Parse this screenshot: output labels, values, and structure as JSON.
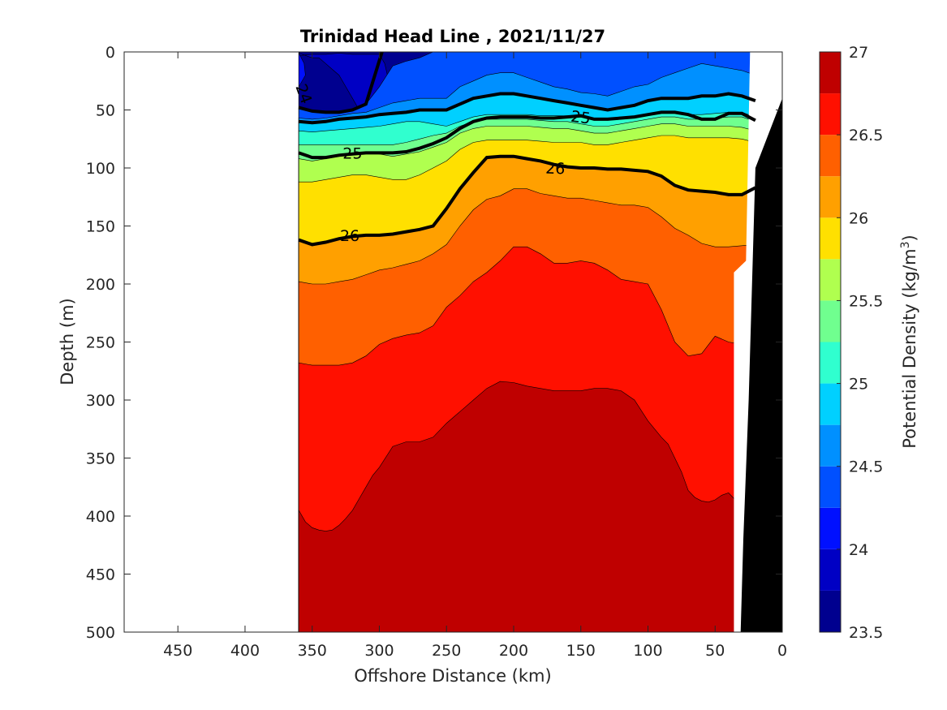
{
  "chart_data": {
    "type": "contour",
    "title": "Trinidad Head Line , 2021/11/27",
    "xlabel": "Offshore Distance (km)",
    "ylabel": "Depth (m)",
    "xlim": [
      490,
      0
    ],
    "ylim": [
      500,
      0
    ],
    "x_direction": "reversed",
    "y_direction": "reversed",
    "x_ticks": [
      450,
      400,
      350,
      300,
      250,
      200,
      150,
      100,
      50,
      0
    ],
    "y_ticks": [
      0,
      50,
      100,
      150,
      200,
      250,
      300,
      350,
      400,
      450,
      500
    ],
    "grid": false,
    "data_extent_km": [
      360,
      20
    ],
    "colorbar": {
      "label": "Potential Density (kg/m",
      "label_sup": "3",
      "label_close": ")",
      "range": [
        23.5,
        27
      ],
      "ticks": [
        27,
        26.5,
        26,
        25.5,
        25,
        24.5,
        24,
        23.5
      ],
      "levels": [
        23.5,
        23.75,
        24,
        24.25,
        24.5,
        24.75,
        25,
        25.25,
        25.5,
        25.75,
        26,
        26.25,
        26.5,
        26.75,
        27
      ],
      "colors": [
        "#00008f",
        "#0000c4",
        "#0010ff",
        "#0050ff",
        "#0090ff",
        "#00d0ff",
        "#30ffcf",
        "#70ff8f",
        "#b0ff4f",
        "#ffe000",
        "#ffa000",
        "#ff6000",
        "#ff1000",
        "#bf0000"
      ]
    },
    "bands": [
      {
        "level": 23.75,
        "color": "#0000c4",
        "x": [
          360,
          359,
          350,
          340,
          330,
          320,
          310,
          300,
          296,
          294,
          295,
          300,
          305,
          310,
          315,
          320,
          325,
          330,
          335,
          340,
          345,
          350,
          355,
          360
        ],
        "y": [
          0,
          3,
          2,
          2,
          1,
          2,
          2,
          2,
          10,
          20,
          50,
          55,
          55,
          55,
          50,
          40,
          30,
          20,
          15,
          10,
          5,
          5,
          3,
          1
        ]
      },
      {
        "level": 24.0,
        "color": "#0010ff",
        "x": [
          360,
          356,
          355,
          360
        ],
        "y": [
          1,
          10,
          20,
          30
        ]
      },
      {
        "level": 24.25,
        "color": "#0050ff",
        "x": [
          360,
          350,
          340,
          330,
          320,
          310,
          300,
          290,
          280,
          270,
          260,
          250,
          240,
          230,
          220,
          210,
          200,
          190,
          180,
          170,
          160,
          150,
          140,
          130,
          120,
          110,
          100,
          90,
          80,
          70,
          60,
          50,
          40,
          30,
          20
        ],
        "y": [
          48,
          51,
          52,
          52,
          50,
          45,
          30,
          12,
          8,
          5,
          0,
          0,
          0,
          0,
          0,
          0,
          0,
          0,
          0,
          0,
          0,
          0,
          0,
          0,
          0,
          0,
          0,
          0,
          0,
          0,
          0,
          0,
          0,
          0,
          0
        ]
      },
      {
        "level": 24.5,
        "color": "#0090ff",
        "x": [
          360,
          350,
          340,
          330,
          320,
          310,
          300,
          290,
          280,
          270,
          260,
          250,
          240,
          230,
          220,
          210,
          200,
          190,
          180,
          170,
          160,
          150,
          140,
          130,
          120,
          110,
          100,
          90,
          80,
          70,
          60,
          50,
          40,
          30,
          20
        ],
        "y": [
          57,
          58,
          57,
          55,
          53,
          52,
          48,
          44,
          42,
          40,
          40,
          40,
          30,
          25,
          20,
          18,
          18,
          22,
          26,
          30,
          32,
          35,
          36,
          38,
          34,
          30,
          28,
          22,
          18,
          14,
          10,
          12,
          14,
          16,
          20
        ]
      },
      {
        "level": 24.75,
        "color": "#00d0ff",
        "x": [
          360,
          350,
          340,
          330,
          320,
          310,
          300,
          290,
          280,
          270,
          260,
          250,
          240,
          230,
          220,
          210,
          200,
          190,
          180,
          170,
          160,
          150,
          140,
          130,
          120,
          110,
          100,
          90,
          80,
          70,
          60,
          50,
          40,
          30,
          20
        ],
        "y": [
          60,
          61,
          60,
          58,
          57,
          56,
          54,
          53,
          52,
          50,
          50,
          50,
          45,
          40,
          38,
          36,
          36,
          38,
          40,
          42,
          44,
          46,
          48,
          50,
          48,
          46,
          42,
          40,
          40,
          40,
          38,
          38,
          36,
          38,
          42
        ]
      },
      {
        "level": 25.0,
        "color": "#30ffcf",
        "x": [
          360,
          350,
          340,
          330,
          320,
          310,
          300,
          290,
          280,
          270,
          260,
          250,
          240,
          230,
          220,
          210,
          200,
          190,
          180,
          170,
          160,
          150,
          140,
          130,
          120,
          110,
          100,
          90,
          80,
          70,
          60,
          50,
          40,
          30,
          20
        ],
        "y": [
          68,
          69,
          68,
          67,
          66,
          65,
          64,
          62,
          60,
          60,
          62,
          64,
          60,
          56,
          54,
          54,
          54,
          54,
          55,
          55,
          55,
          56,
          58,
          58,
          57,
          56,
          54,
          52,
          52,
          54,
          54,
          53,
          52,
          52,
          56
        ]
      },
      {
        "level": 25.25,
        "color": "#70ff8f",
        "x": [
          360,
          350,
          340,
          330,
          320,
          310,
          300,
          290,
          280,
          270,
          260,
          250,
          240,
          230,
          220,
          210,
          200,
          190,
          180,
          170,
          160,
          150,
          140,
          130,
          120,
          110,
          100,
          90,
          80,
          70,
          60,
          50,
          40,
          30,
          20
        ],
        "y": [
          80,
          80,
          80,
          80,
          80,
          80,
          80,
          80,
          78,
          75,
          72,
          70,
          64,
          60,
          58,
          58,
          58,
          58,
          59,
          60,
          60,
          62,
          64,
          64,
          62,
          60,
          58,
          56,
          56,
          58,
          58,
          57,
          56,
          56,
          60
        ]
      },
      {
        "level": 25.5,
        "color": "#b0ff4f",
        "x": [
          360,
          350,
          340,
          330,
          320,
          310,
          300,
          290,
          280,
          270,
          260,
          250,
          240,
          230,
          220,
          210,
          200,
          190,
          180,
          170,
          160,
          150,
          140,
          130,
          120,
          110,
          100,
          90,
          80,
          70,
          60,
          50,
          40,
          30,
          20
        ],
        "y": [
          92,
          94,
          92,
          90,
          88,
          87,
          88,
          90,
          88,
          86,
          82,
          78,
          70,
          66,
          64,
          64,
          64,
          64,
          65,
          66,
          66,
          68,
          70,
          70,
          68,
          66,
          64,
          62,
          62,
          64,
          64,
          64,
          64,
          65,
          68
        ]
      },
      {
        "level": 25.75,
        "color": "#ffe000",
        "x": [
          360,
          350,
          340,
          330,
          320,
          310,
          300,
          290,
          280,
          270,
          260,
          250,
          240,
          230,
          220,
          210,
          200,
          190,
          180,
          170,
          160,
          150,
          140,
          130,
          120,
          110,
          100,
          90,
          80,
          70,
          60,
          50,
          40,
          30,
          20
        ],
        "y": [
          112,
          112,
          110,
          108,
          106,
          106,
          108,
          110,
          110,
          106,
          100,
          94,
          84,
          78,
          76,
          76,
          76,
          76,
          77,
          78,
          78,
          78,
          80,
          80,
          78,
          76,
          74,
          72,
          72,
          74,
          74,
          74,
          74,
          75,
          78
        ]
      },
      {
        "level": 26.0,
        "color": "#ffa000",
        "x": [
          360,
          350,
          340,
          330,
          320,
          310,
          300,
          290,
          280,
          270,
          260,
          250,
          240,
          230,
          220,
          210,
          200,
          190,
          180,
          170,
          160,
          150,
          140,
          130,
          120,
          110,
          100,
          90,
          80,
          70,
          60,
          50,
          40,
          30,
          20
        ],
        "y": [
          162,
          166,
          164,
          161,
          159,
          158,
          158,
          157,
          155,
          153,
          150,
          135,
          118,
          104,
          91,
          90,
          90,
          92,
          94,
          97,
          99,
          100,
          100,
          101,
          101,
          102,
          103,
          107,
          115,
          119,
          120,
          121,
          123,
          123,
          117
        ]
      },
      {
        "level": 26.25,
        "color": "#ff6000",
        "x": [
          360,
          350,
          340,
          330,
          320,
          310,
          300,
          290,
          280,
          270,
          260,
          250,
          240,
          230,
          220,
          210,
          200,
          190,
          180,
          170,
          160,
          150,
          140,
          130,
          120,
          110,
          100,
          90,
          80,
          70,
          60,
          50,
          40,
          30,
          20
        ],
        "y": [
          198,
          200,
          200,
          198,
          196,
          192,
          188,
          186,
          183,
          180,
          174,
          166,
          150,
          136,
          127,
          124,
          118,
          118,
          122,
          124,
          126,
          126,
          128,
          130,
          132,
          132,
          134,
          142,
          152,
          158,
          165,
          168,
          168,
          167,
          166
        ]
      },
      {
        "level": 26.5,
        "color": "#ff1000",
        "x": [
          360,
          350,
          340,
          330,
          320,
          310,
          300,
          290,
          280,
          270,
          260,
          250,
          240,
          230,
          220,
          210,
          200,
          190,
          180,
          170,
          160,
          150,
          140,
          130,
          120,
          110,
          100,
          90,
          80,
          70,
          60,
          50,
          40,
          30,
          20
        ],
        "y": [
          268,
          270,
          270,
          270,
          268,
          262,
          252,
          247,
          244,
          242,
          236,
          220,
          210,
          198,
          190,
          180,
          168,
          168,
          174,
          182,
          182,
          180,
          182,
          188,
          196,
          198,
          200,
          222,
          250,
          262,
          260,
          245,
          250,
          252,
          256
        ]
      },
      {
        "level": 26.75,
        "color": "#bf0000",
        "x": [
          360,
          355,
          350,
          345,
          340,
          335,
          330,
          325,
          320,
          315,
          310,
          305,
          300,
          290,
          280,
          270,
          260,
          250,
          240,
          230,
          220,
          210,
          200,
          190,
          180,
          170,
          160,
          150,
          140,
          130,
          120,
          110,
          100,
          90,
          85,
          80,
          75,
          70,
          65,
          60,
          55,
          50,
          45,
          40,
          35,
          30
        ],
        "y": [
          395,
          405,
          410,
          412,
          413,
          412,
          408,
          402,
          395,
          385,
          375,
          365,
          358,
          340,
          336,
          336,
          332,
          320,
          310,
          300,
          290,
          284,
          285,
          288,
          290,
          292,
          292,
          292,
          290,
          290,
          292,
          300,
          318,
          332,
          338,
          350,
          362,
          378,
          384,
          387,
          388,
          386,
          382,
          380,
          386,
          385
        ]
      }
    ],
    "bathymetry": {
      "x": [
        31,
        29,
        25,
        20,
        0,
        0
      ],
      "y": [
        500,
        420,
        300,
        100,
        40,
        500
      ]
    },
    "highlight_contours": [
      {
        "level": 24.25,
        "x": [
          360,
          350,
          340,
          330,
          320,
          310,
          298
        ],
        "y": [
          48,
          51,
          52,
          52,
          50,
          45,
          0
        ]
      },
      {
        "level": 25,
        "x": [
          360,
          350,
          340,
          330,
          320,
          310,
          300,
          290,
          280,
          270,
          260,
          250,
          240,
          230,
          220,
          210,
          200,
          190,
          180,
          170,
          160,
          150,
          140,
          130,
          120,
          110,
          100,
          90,
          80,
          70,
          60,
          50,
          40,
          30,
          20
        ],
        "y": [
          60,
          61,
          60,
          58,
          57,
          56,
          54,
          53,
          52,
          50,
          50,
          50,
          45,
          40,
          38,
          36,
          36,
          38,
          40,
          42,
          44,
          46,
          48,
          50,
          48,
          46,
          42,
          40,
          40,
          40,
          38,
          38,
          36,
          38,
          42
        ]
      },
      {
        "level": 25,
        "x": [
          360,
          350,
          340,
          330,
          320,
          310,
          300,
          290,
          280,
          270,
          260,
          250,
          240,
          230,
          220,
          210,
          200,
          190,
          180,
          170,
          160,
          150,
          140,
          130,
          120,
          110,
          100,
          90,
          80,
          70,
          60,
          50,
          40,
          30,
          20
        ],
        "y": [
          87,
          91,
          91,
          89,
          88,
          87,
          87,
          87,
          86,
          83,
          79,
          74,
          66,
          60,
          57,
          56,
          56,
          56,
          57,
          57,
          56,
          55,
          58,
          58,
          57,
          56,
          54,
          52,
          52,
          54,
          58,
          58,
          53,
          53,
          59
        ]
      },
      {
        "level": 26,
        "x": [
          360,
          350,
          340,
          330,
          320,
          310,
          300,
          290,
          280,
          270,
          260,
          250,
          240,
          230,
          220,
          210,
          200,
          190,
          180,
          170,
          160,
          150,
          140,
          130,
          120,
          110,
          100,
          90,
          80,
          70,
          60,
          50,
          40,
          30,
          20
        ],
        "y": [
          162,
          166,
          164,
          161,
          159,
          158,
          158,
          157,
          155,
          153,
          150,
          135,
          118,
          104,
          91,
          90,
          90,
          92,
          94,
          97,
          99,
          100,
          100,
          101,
          101,
          102,
          103,
          107,
          115,
          119,
          120,
          121,
          123,
          123,
          117
        ]
      }
    ],
    "contour_labels": [
      {
        "text": "24",
        "x": 356,
        "y": 36,
        "rotate": 70
      },
      {
        "text": "25",
        "x": 150,
        "y": 56,
        "rotate": 8
      },
      {
        "text": "25",
        "x": 320,
        "y": 87,
        "rotate": 0
      },
      {
        "text": "26",
        "x": 169,
        "y": 100,
        "rotate": 2
      },
      {
        "text": "26",
        "x": 322,
        "y": 158,
        "rotate": 0
      }
    ]
  }
}
